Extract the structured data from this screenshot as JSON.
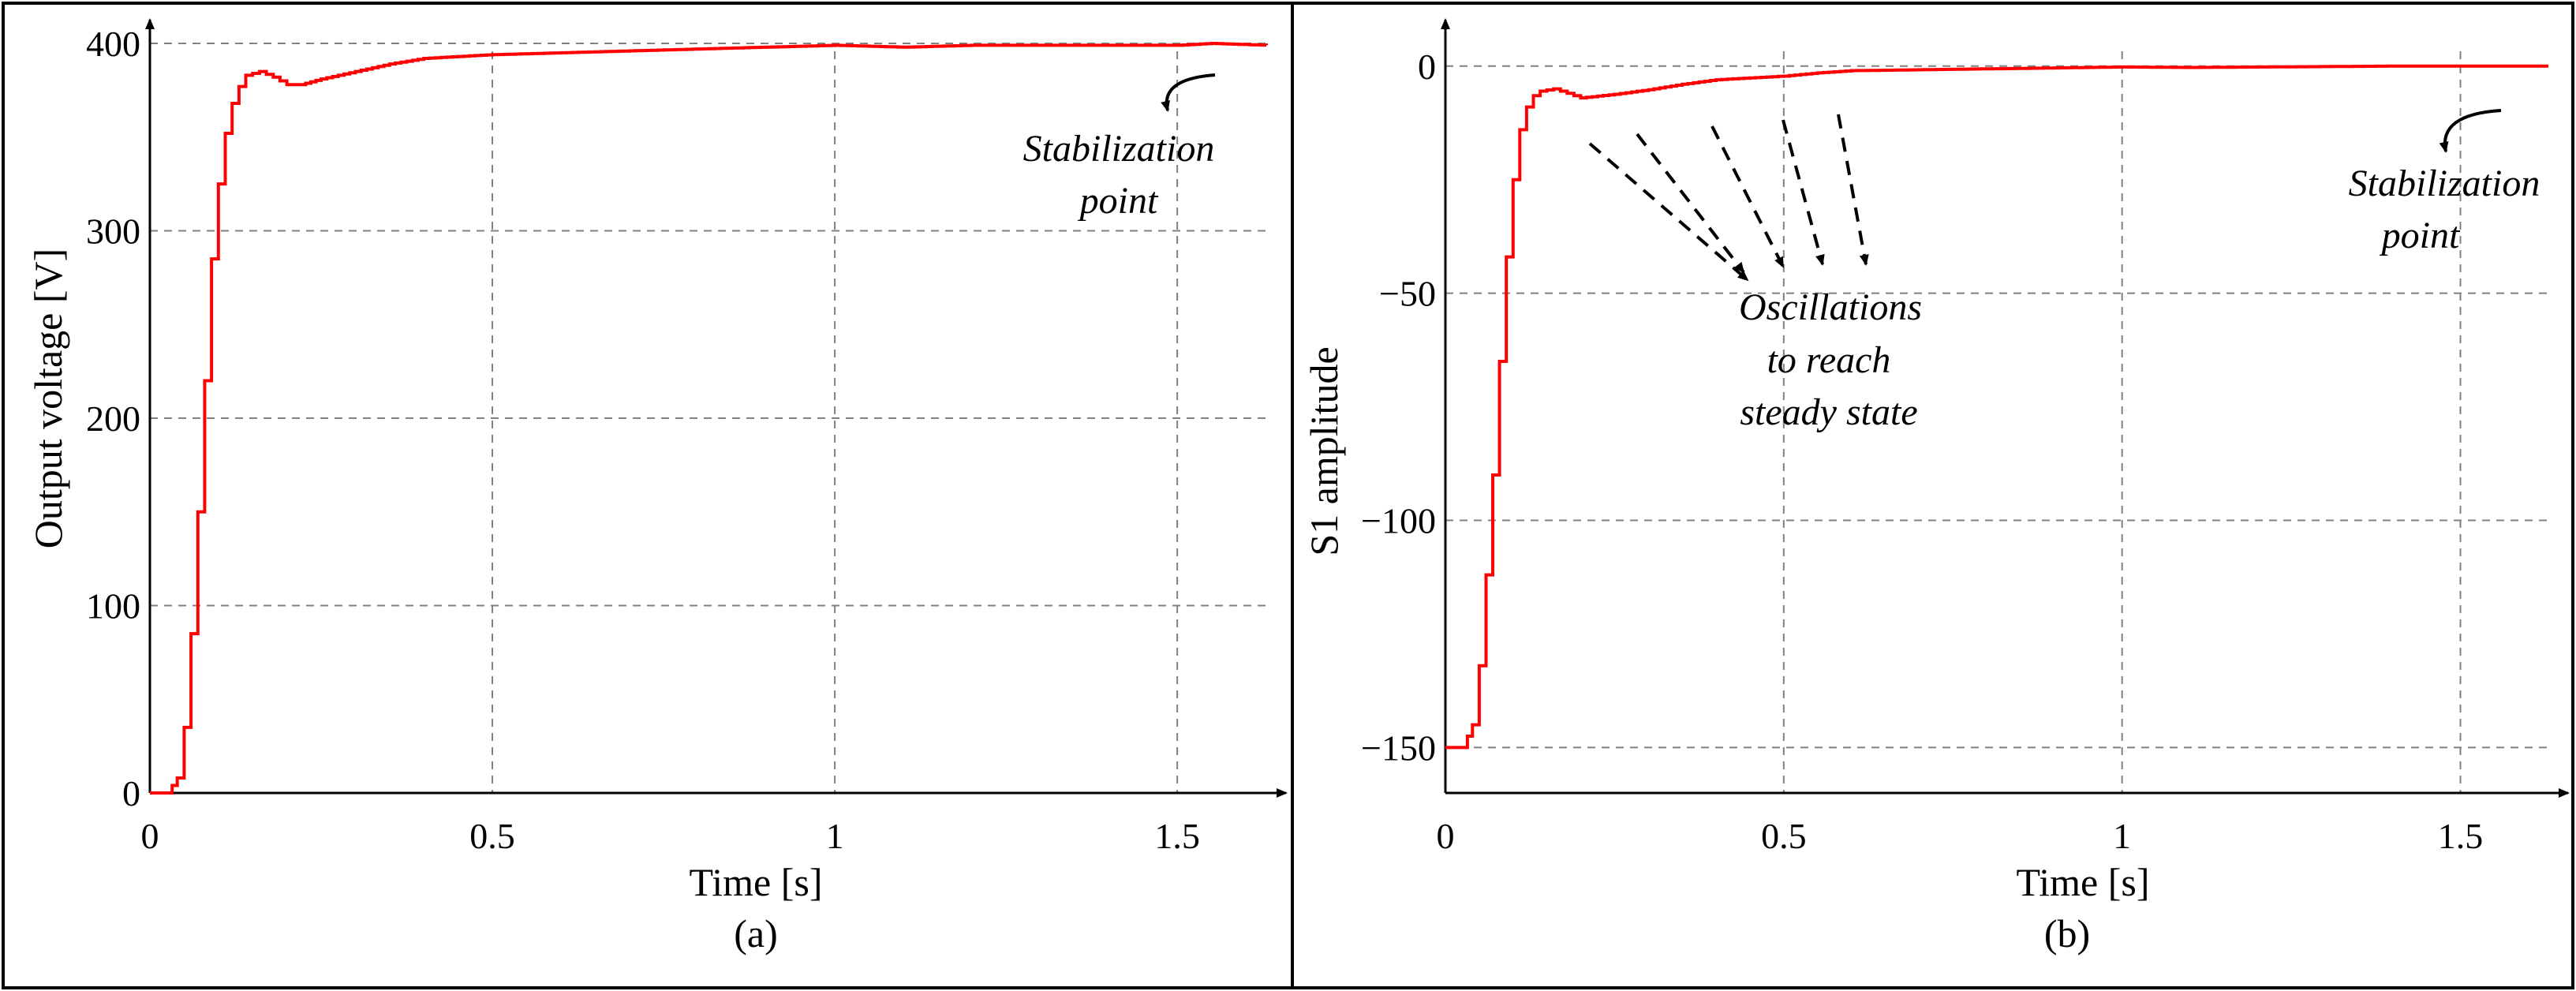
{
  "colors": {
    "curve": "#ff0000",
    "grid": "#808080",
    "axis": "#000000",
    "frame": "#000000"
  },
  "chart_data": [
    {
      "type": "line",
      "caption": "(a)",
      "title": "",
      "xlabel": "Time [s]",
      "ylabel": "Output voltage [V]",
      "xlim": [
        0,
        1.63
      ],
      "ylim": [
        0,
        400
      ],
      "xticks": [
        0,
        0.5,
        1,
        1.5
      ],
      "xtick_labels": [
        "0",
        "0.5",
        "1",
        "1.5"
      ],
      "yticks": [
        0,
        100,
        200,
        300,
        400
      ],
      "ytick_labels": [
        "0",
        "100",
        "200",
        "300",
        "400"
      ],
      "grid": true,
      "legend": null,
      "annotation": {
        "lines": [
          "Stabilization",
          "point"
        ],
        "target": [
          1.55,
          400
        ]
      },
      "series": [
        {
          "name": "Output voltage",
          "x": [
            0,
            0.025,
            0.04,
            0.05,
            0.06,
            0.07,
            0.08,
            0.09,
            0.1,
            0.11,
            0.12,
            0.13,
            0.14,
            0.16,
            0.18,
            0.2,
            0.22,
            0.25,
            0.3,
            0.35,
            0.4,
            0.5,
            0.6,
            0.7,
            0.8,
            0.9,
            1.0,
            1.1,
            1.2,
            1.3,
            1.4,
            1.5,
            1.55,
            1.63
          ],
          "y": [
            0,
            0,
            8,
            35,
            85,
            150,
            220,
            285,
            325,
            352,
            368,
            377,
            383,
            385,
            382,
            378,
            378,
            381,
            385,
            389,
            392,
            394,
            395,
            396,
            397,
            398,
            399,
            398,
            399,
            399,
            399,
            399,
            400,
            399
          ]
        }
      ]
    },
    {
      "type": "line",
      "caption": "(b)",
      "title": "",
      "xlabel": "Time [s]",
      "ylabel": "S1 amplitude",
      "xlim": [
        0,
        1.63
      ],
      "ylim": [
        -160,
        5
      ],
      "xticks": [
        0,
        0.5,
        1,
        1.5
      ],
      "xtick_labels": [
        "0",
        "0.5",
        "1",
        "1.5"
      ],
      "yticks": [
        -150,
        -100,
        -50,
        0
      ],
      "ytick_labels": [
        "−150",
        "−100",
        "−50",
        "0"
      ],
      "grid": true,
      "legend": null,
      "annotations": [
        {
          "lines": [
            "Stabilization",
            "point"
          ],
          "target": [
            1.55,
            0
          ]
        },
        {
          "lines": [
            "Oscillations",
            "to reach",
            "steady state"
          ],
          "sources": [
            [
              0.22,
              -7
            ],
            [
              0.28,
              -6
            ],
            [
              0.38,
              -4
            ],
            [
              0.49,
              -3
            ],
            [
              0.57,
              -2
            ]
          ]
        }
      ],
      "series": [
        {
          "name": "S1 amplitude",
          "x": [
            0,
            0.025,
            0.04,
            0.05,
            0.06,
            0.07,
            0.08,
            0.09,
            0.1,
            0.11,
            0.12,
            0.13,
            0.14,
            0.16,
            0.18,
            0.2,
            0.25,
            0.3,
            0.35,
            0.4,
            0.45,
            0.5,
            0.55,
            0.6,
            0.7,
            0.8,
            0.9,
            1.0,
            1.1,
            1.2,
            1.3,
            1.4,
            1.5,
            1.55,
            1.63
          ],
          "y": [
            -150,
            -150,
            -145,
            -132,
            -112,
            -90,
            -65,
            -42,
            -25,
            -14,
            -9,
            -6.5,
            -5.5,
            -5,
            -6,
            -7,
            -6.2,
            -5.2,
            -4,
            -3,
            -2.6,
            -2.2,
            -1.5,
            -1,
            -0.8,
            -0.6,
            -0.4,
            -0.2,
            -0.3,
            -0.2,
            -0.1,
            0,
            0,
            0,
            0
          ]
        }
      ]
    }
  ]
}
